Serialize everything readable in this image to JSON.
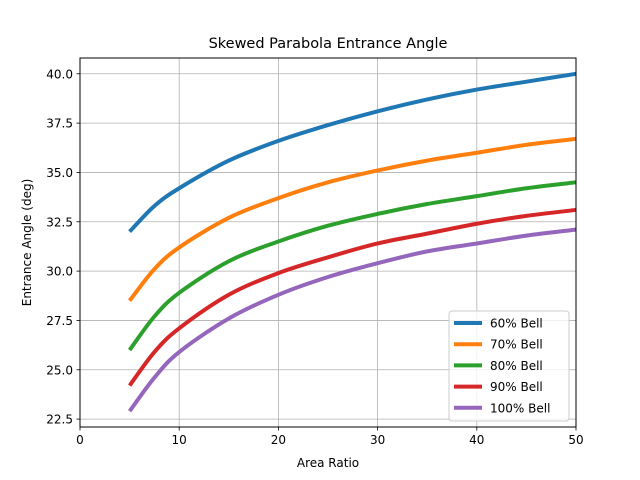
{
  "chart_data": {
    "type": "line",
    "title": "Skewed Parabola Entrance Angle",
    "xlabel": "Area Ratio",
    "ylabel": "Entrance Angle (deg)",
    "xlim": [
      0,
      50
    ],
    "ylim": [
      22.1,
      40.8
    ],
    "xticks": [
      0,
      10,
      20,
      30,
      40,
      50
    ],
    "xtick_labels": [
      "0",
      "10",
      "20",
      "30",
      "40",
      "50"
    ],
    "yticks": [
      22.5,
      25.0,
      27.5,
      30.0,
      32.5,
      35.0,
      37.5,
      40.0
    ],
    "ytick_labels": [
      "22.5",
      "25.0",
      "27.5",
      "30.0",
      "32.5",
      "35.0",
      "37.5",
      "40.0"
    ],
    "grid": true,
    "legend_position": "bottom-right",
    "x": [
      5,
      7.5,
      10,
      15,
      20,
      25,
      30,
      35,
      40,
      45,
      50
    ],
    "series": [
      {
        "name": "60% Bell",
        "color": "#1f77b4",
        "values": [
          32.0,
          33.3,
          34.2,
          35.6,
          36.6,
          37.4,
          38.1,
          38.7,
          39.2,
          39.6,
          40.0
        ]
      },
      {
        "name": "70% Bell",
        "color": "#ff7f0e",
        "values": [
          28.5,
          30.1,
          31.2,
          32.7,
          33.7,
          34.5,
          35.1,
          35.6,
          36.0,
          36.4,
          36.7
        ]
      },
      {
        "name": "80% Bell",
        "color": "#2ca02c",
        "values": [
          26.0,
          27.7,
          28.9,
          30.5,
          31.5,
          32.3,
          32.9,
          33.4,
          33.8,
          34.2,
          34.5
        ]
      },
      {
        "name": "90% Bell",
        "color": "#d62728",
        "values": [
          24.2,
          25.9,
          27.1,
          28.8,
          29.9,
          30.7,
          31.4,
          31.9,
          32.4,
          32.8,
          33.1
        ]
      },
      {
        "name": "100% Bell",
        "color": "#9467bd",
        "values": [
          22.9,
          24.6,
          25.9,
          27.6,
          28.8,
          29.7,
          30.4,
          31.0,
          31.4,
          31.8,
          32.1
        ]
      }
    ]
  }
}
